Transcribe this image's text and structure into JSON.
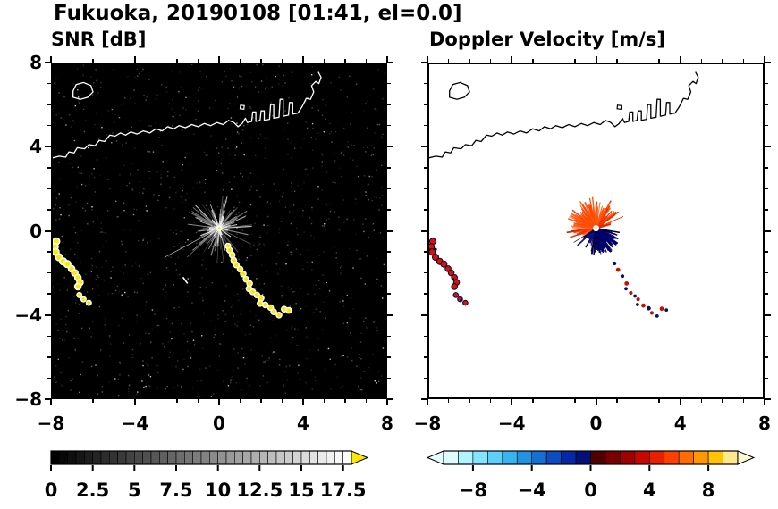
{
  "title": "Fukuoka, 20190108 [01:41, el=0.0]",
  "coastline": {
    "main": [
      [
        -8,
        3.45
      ],
      [
        -7.6,
        3.55
      ],
      [
        -7.3,
        3.5
      ],
      [
        -7.15,
        3.75
      ],
      [
        -6.9,
        3.7
      ],
      [
        -6.75,
        3.95
      ],
      [
        -6.4,
        3.9
      ],
      [
        -6.2,
        4.1
      ],
      [
        -5.9,
        4.05
      ],
      [
        -5.7,
        4.3
      ],
      [
        -5.45,
        4.25
      ],
      [
        -5.2,
        4.55
      ],
      [
        -4.95,
        4.5
      ],
      [
        -4.7,
        4.65
      ],
      [
        -4.45,
        4.55
      ],
      [
        -4.2,
        4.7
      ],
      [
        -3.9,
        4.6
      ],
      [
        -3.6,
        4.75
      ],
      [
        -3.3,
        4.65
      ],
      [
        -3.0,
        4.85
      ],
      [
        -2.7,
        4.75
      ],
      [
        -2.45,
        4.95
      ],
      [
        -2.15,
        4.85
      ],
      [
        -1.9,
        5.0
      ],
      [
        -1.6,
        4.9
      ],
      [
        -1.3,
        5.05
      ],
      [
        -1.0,
        4.95
      ],
      [
        -0.7,
        5.1
      ],
      [
        -0.4,
        5.0
      ],
      [
        -0.1,
        5.15
      ],
      [
        0.2,
        5.05
      ],
      [
        0.45,
        5.25
      ],
      [
        0.7,
        5.15
      ],
      [
        0.9,
        4.95
      ],
      [
        1.1,
        5.1
      ],
      [
        1.25,
        5.35
      ],
      [
        1.35,
        5.15
      ],
      [
        1.55,
        5.2
      ],
      [
        1.6,
        5.65
      ],
      [
        1.75,
        5.65
      ],
      [
        1.75,
        5.2
      ],
      [
        1.95,
        5.25
      ],
      [
        2.0,
        5.7
      ],
      [
        2.15,
        5.7
      ],
      [
        2.15,
        5.25
      ],
      [
        2.4,
        5.3
      ],
      [
        2.45,
        6.0
      ],
      [
        2.6,
        6.0
      ],
      [
        2.6,
        5.35
      ],
      [
        2.85,
        5.4
      ],
      [
        2.9,
        6.25
      ],
      [
        3.05,
        6.25
      ],
      [
        3.05,
        5.45
      ],
      [
        3.3,
        5.5
      ],
      [
        3.35,
        6.1
      ],
      [
        3.5,
        6.1
      ],
      [
        3.5,
        5.55
      ],
      [
        3.75,
        5.6
      ],
      [
        3.95,
        5.9
      ],
      [
        4.15,
        6.3
      ],
      [
        4.35,
        6.25
      ],
      [
        4.5,
        6.6
      ],
      [
        4.4,
        6.9
      ],
      [
        4.6,
        7.1
      ],
      [
        4.75,
        7.0
      ],
      [
        4.85,
        7.3
      ],
      [
        4.72,
        7.55
      ]
    ],
    "island": [
      [
        -6.95,
        6.35
      ],
      [
        -6.6,
        6.25
      ],
      [
        -6.25,
        6.35
      ],
      [
        -6.0,
        6.6
      ],
      [
        -6.1,
        6.9
      ],
      [
        -6.45,
        7.05
      ],
      [
        -6.8,
        6.95
      ],
      [
        -6.95,
        6.65
      ]
    ],
    "islet": [
      [
        1.0,
        5.8
      ],
      [
        1.18,
        5.78
      ],
      [
        1.2,
        5.95
      ],
      [
        1.02,
        5.97
      ]
    ]
  },
  "chart_data": [
    {
      "type": "heatmap",
      "name": "snr",
      "title": "SNR [dB]",
      "units": "dB",
      "background": "#000000",
      "coast_color": "#ffffff",
      "axis": {
        "xlim": [
          -8,
          8
        ],
        "ylim": [
          -8,
          8
        ],
        "minor_step": 1,
        "xticks": [
          -8,
          -4,
          0,
          4,
          8
        ],
        "xtick_labels": [
          "−8",
          "−4",
          "0",
          "4",
          "8"
        ],
        "yticks": [
          -8,
          -4,
          0,
          4,
          8
        ],
        "ytick_values": [
          8,
          4,
          0,
          -4,
          -8
        ],
        "ytick_labels": [
          "8",
          "4",
          "0",
          "−4",
          "−8"
        ],
        "show_y_labels": true
      },
      "colorbar": {
        "kind": "gradient",
        "min": 0,
        "max": 18,
        "cell_step": 0.5,
        "tick_values": [
          0,
          2.5,
          5,
          7.5,
          10,
          12.5,
          15,
          17.5
        ],
        "tick_labels": [
          "0",
          "2.5",
          "5",
          "7.5",
          "10",
          "12.5",
          "15",
          "17.5"
        ],
        "arrow_right": "#ffe800"
      },
      "noise": [
        {
          "seed": 5,
          "count": 1000,
          "gmin": 22,
          "gmax": 95
        },
        {
          "seed": 6,
          "count": 130,
          "gmin": 120,
          "gmax": 215
        }
      ],
      "center": {
        "x": 0,
        "y": 0.12,
        "outer": "#ffffff",
        "outer_r": 0.14,
        "core": "#ffe800",
        "core_r": 0.06
      },
      "rays": [
        {
          "seed": 11,
          "count": 170,
          "angle": [
            0,
            360
          ],
          "rmin": 0.15,
          "rmax": 1.7,
          "colors": [
            "#4a4a4a",
            "#686868",
            "#8a8a8a",
            "#acacac",
            "#cecece"
          ],
          "wmin": 0.02,
          "wmax": 0.05
        },
        {
          "seed": 12,
          "count": 70,
          "angle": [
            0,
            360
          ],
          "rmin": 0.1,
          "rmax": 0.7,
          "colors": [
            "#d8d8d8",
            "#efefef"
          ],
          "wmin": 0.03,
          "wmax": 0.06
        }
      ],
      "long_rays": [
        [
          208,
          2.95,
          "#b0b0b0",
          0.035
        ],
        [
          222,
          2.05,
          "#777777",
          0.03
        ]
      ],
      "features": [
        {
          "kind": "chain",
          "fill": "#ffe800",
          "stroke": "#ffffff",
          "sw": 1.6,
          "r": 0.16,
          "points": [
            [
              -7.75,
              -0.5
            ],
            [
              -7.82,
              -0.75
            ],
            [
              -7.78,
              -1.0
            ],
            [
              -7.62,
              -1.25
            ],
            [
              -7.42,
              -1.45
            ],
            [
              -7.22,
              -1.58
            ]
          ]
        },
        {
          "kind": "chain",
          "fill": "#ffe800",
          "stroke": "#ffffff",
          "sw": 1.6,
          "r": 0.15,
          "points": [
            [
              -7.02,
              -1.8
            ],
            [
              -6.87,
              -2.0
            ],
            [
              -6.72,
              -2.22
            ],
            [
              -6.62,
              -2.45
            ],
            [
              -6.72,
              -2.65
            ]
          ]
        },
        {
          "kind": "chain",
          "fill": "#ffe800",
          "stroke": "#ffffff",
          "sw": 1.4,
          "r": 0.12,
          "points": [
            [
              -6.65,
              -3.05
            ],
            [
              -6.45,
              -3.25
            ],
            [
              -6.2,
              -3.42
            ]
          ]
        },
        {
          "kind": "chain",
          "fill": "#ffe800",
          "stroke": "#ffffff",
          "sw": 1.4,
          "r": 0.13,
          "points": [
            [
              0.42,
              -0.72
            ],
            [
              0.5,
              -0.92
            ],
            [
              0.62,
              -1.15
            ],
            [
              0.7,
              -1.4
            ],
            [
              0.82,
              -1.62
            ],
            [
              1.0,
              -1.82
            ],
            [
              1.15,
              -2.05
            ],
            [
              1.28,
              -2.3
            ],
            [
              1.45,
              -2.5
            ],
            [
              1.42,
              -2.75
            ],
            [
              1.6,
              -2.9
            ],
            [
              1.8,
              -3.05
            ],
            [
              2.0,
              -3.2
            ],
            [
              1.95,
              -3.45
            ],
            [
              2.2,
              -3.52
            ],
            [
              2.45,
              -3.65
            ],
            [
              2.6,
              -3.85
            ],
            [
              2.85,
              -4.0
            ],
            [
              3.1,
              -3.72
            ],
            [
              3.32,
              -3.78
            ]
          ]
        },
        {
          "kind": "line",
          "x1": -1.72,
          "y1": -2.2,
          "x2": -1.5,
          "y2": -2.5,
          "color": "#ffffff",
          "width": 0.07
        }
      ]
    },
    {
      "type": "heatmap",
      "name": "vel",
      "title": "Doppler Velocity [m/s]",
      "units": "m/s",
      "background": "#ffffff",
      "coast_color": "#000000",
      "axis": {
        "xlim": [
          -8,
          8
        ],
        "ylim": [
          -8,
          8
        ],
        "minor_step": 1,
        "xticks": [
          -8,
          -4,
          0,
          4,
          8
        ],
        "xtick_labels": [
          "−8",
          "−4",
          "0",
          "4",
          "8"
        ],
        "yticks": [
          -8,
          -4,
          0,
          4,
          8
        ],
        "ytick_values": [
          8,
          4,
          0,
          -4,
          -8
        ],
        "ytick_labels": [
          "8",
          "4",
          "0",
          "−4",
          "−8"
        ],
        "show_y_labels": false
      },
      "colorbar": {
        "kind": "cells",
        "min": -10,
        "max": 10,
        "cell_step": 1,
        "cells": [
          "#dffdff",
          "#b0f4ff",
          "#84e4ff",
          "#5cd0fa",
          "#38b4f0",
          "#2292e2",
          "#1670d2",
          "#0c4cc0",
          "#0628a8",
          "#041078",
          "#500000",
          "#780000",
          "#a00000",
          "#c80800",
          "#e82000",
          "#ff4000",
          "#ff6c00",
          "#ff9800",
          "#ffc400",
          "#ffe88c"
        ],
        "tick_values": [
          -8,
          -4,
          0,
          4,
          8
        ],
        "tick_labels": [
          "−8",
          "−4",
          "0",
          "4",
          "8"
        ],
        "arrow_left": "#e4ffff",
        "arrow_right": "#fffbd4"
      },
      "center": {
        "x": 0,
        "y": 0.12,
        "outer": "#ffffff",
        "outer_r": 0.15,
        "core": "#ffe800",
        "core_r": 0.06
      },
      "rays": [
        {
          "seed": 31,
          "count": 120,
          "angle": [
            15,
            210
          ],
          "rmin": 0.25,
          "rmax": 1.45,
          "colors": [
            "#ff4000",
            "#e83000",
            "#ff5c10",
            "#d82800",
            "#ff7030"
          ],
          "wmin": 0.03,
          "wmax": 0.08
        },
        {
          "seed": 32,
          "count": 60,
          "angle": [
            60,
            180
          ],
          "rmin": 0.3,
          "rmax": 1.5,
          "colors": [
            "#ff4800",
            "#ff5c10"
          ],
          "wmin": 0.04,
          "wmax": 0.09
        },
        {
          "seed": 33,
          "count": 110,
          "angle": [
            210,
            350
          ],
          "rmin": 0.2,
          "rmax": 1.3,
          "colors": [
            "#000070",
            "#000050",
            "#101080",
            "#000038"
          ],
          "wmin": 0.03,
          "wmax": 0.08
        },
        {
          "seed": 34,
          "count": 70,
          "angle": [
            280,
            335
          ],
          "rmin": 0.2,
          "rmax": 1.35,
          "colors": [
            "#000060",
            "#000078"
          ],
          "wmin": 0.05,
          "wmax": 0.1
        }
      ],
      "long_rays": [],
      "features": [
        {
          "kind": "chain",
          "fill": "#d81400",
          "stroke": "#00004a",
          "sw": 1.0,
          "r": 0.15,
          "points": [
            [
              -7.75,
              -0.5
            ],
            [
              -7.82,
              -0.75
            ],
            [
              -7.78,
              -1.0
            ],
            [
              -7.62,
              -1.25
            ],
            [
              -7.42,
              -1.45
            ],
            [
              -7.22,
              -1.58
            ]
          ]
        },
        {
          "kind": "chain",
          "fill": "#d81400",
          "stroke": "#00004a",
          "sw": 1.0,
          "r": 0.14,
          "points": [
            [
              -7.02,
              -1.8
            ],
            [
              -6.87,
              -2.0
            ],
            [
              -6.72,
              -2.22
            ],
            [
              -6.62,
              -2.45
            ],
            [
              -6.72,
              -2.65
            ]
          ]
        },
        {
          "kind": "chain",
          "fill": "#d81400",
          "stroke": "#00004a",
          "sw": 1.0,
          "r": 0.12,
          "points": [
            [
              -6.65,
              -3.05
            ],
            [
              -6.45,
              -3.25
            ],
            [
              -6.2,
              -3.42
            ]
          ]
        },
        {
          "kind": "dots",
          "points": [
            [
              -7.62,
              -0.88,
              0.07,
              "#00004a"
            ],
            [
              -6.78,
              -2.3,
              0.06,
              "#00004a"
            ],
            [
              -6.4,
              -3.3,
              0.06,
              "#00004a"
            ]
          ]
        },
        {
          "kind": "dots",
          "points": [
            [
              0.88,
              -1.55,
              0.09,
              "#00106e"
            ],
            [
              1.05,
              -1.85,
              0.1,
              "#c81000"
            ],
            [
              1.25,
              -2.15,
              0.09,
              "#00106e"
            ],
            [
              1.45,
              -2.5,
              0.1,
              "#c81000"
            ],
            [
              1.42,
              -2.75,
              0.08,
              "#00106e"
            ],
            [
              1.65,
              -2.95,
              0.09,
              "#c81000"
            ],
            [
              1.85,
              -3.1,
              0.08,
              "#00106e"
            ],
            [
              2.0,
              -3.25,
              0.09,
              "#c81000"
            ],
            [
              1.97,
              -3.5,
              0.08,
              "#00106e"
            ],
            [
              2.25,
              -3.55,
              0.1,
              "#c81000"
            ],
            [
              2.5,
              -3.68,
              0.1,
              "#00106e"
            ],
            [
              2.65,
              -3.9,
              0.09,
              "#c81000"
            ],
            [
              2.9,
              -4.05,
              0.08,
              "#00106e"
            ],
            [
              3.12,
              -3.7,
              0.1,
              "#c81000"
            ],
            [
              3.34,
              -3.76,
              0.08,
              "#00106e"
            ]
          ]
        }
      ]
    }
  ]
}
